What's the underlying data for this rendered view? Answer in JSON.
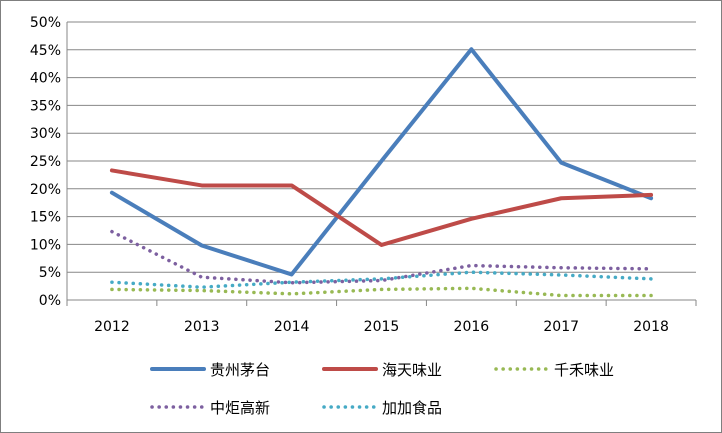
{
  "chart_data": {
    "type": "line",
    "title": "",
    "xlabel": "",
    "ylabel": "",
    "categories": [
      "2012",
      "2013",
      "2014",
      "2015",
      "2016",
      "2017",
      "2018"
    ],
    "ylim": [
      0,
      50
    ],
    "yticks": [
      "0%",
      "5%",
      "10%",
      "15%",
      "20%",
      "25%",
      "30%",
      "35%",
      "40%",
      "45%",
      "50%"
    ],
    "grid": true,
    "legend_position": "bottom",
    "series": [
      {
        "name": "贵州茅台",
        "color": "#4a7ebb",
        "style": "solid",
        "values": [
          19.3,
          9.8,
          4.6,
          25.0,
          45.1,
          24.7,
          18.3
        ]
      },
      {
        "name": "海天味业",
        "color": "#be4b48",
        "style": "solid",
        "values": [
          23.3,
          20.6,
          20.6,
          9.9,
          14.6,
          18.3,
          18.9
        ]
      },
      {
        "name": "千禾味业",
        "color": "#98b954",
        "style": "dotted",
        "values": [
          1.9,
          1.7,
          1.1,
          1.9,
          2.1,
          0.8,
          0.8
        ]
      },
      {
        "name": "中炬高新",
        "color": "#7d60a0",
        "style": "dotted",
        "values": [
          12.3,
          4.1,
          3.1,
          3.5,
          6.2,
          5.8,
          5.6
        ]
      },
      {
        "name": "加加食品",
        "color": "#46aac5",
        "style": "dotted",
        "values": [
          3.2,
          2.3,
          3.2,
          3.8,
          5.0,
          4.5,
          3.8
        ]
      }
    ]
  }
}
